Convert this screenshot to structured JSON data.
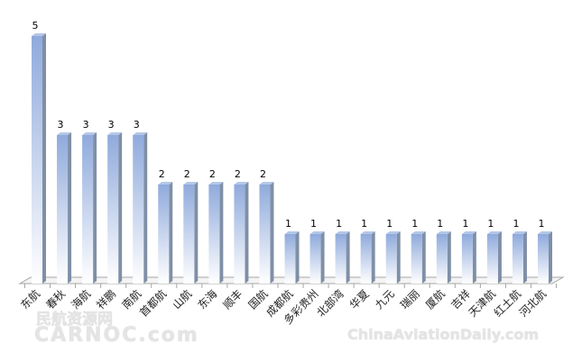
{
  "chart_data": {
    "type": "bar",
    "style": "3d-column",
    "categories": [
      "东航",
      "春秋",
      "海航",
      "祥鹏",
      "南航",
      "首都航",
      "山航",
      "东海",
      "顺丰",
      "国航",
      "成都航",
      "多彩贵州",
      "北部湾",
      "华夏",
      "九元",
      "瑞丽",
      "厦航",
      "吉祥",
      "天津航",
      "红土航",
      "河北航"
    ],
    "values": [
      5,
      3,
      3,
      3,
      3,
      2,
      2,
      2,
      2,
      2,
      1,
      1,
      1,
      1,
      1,
      1,
      1,
      1,
      1,
      1,
      1
    ],
    "ylim": [
      0,
      5
    ],
    "grid": false,
    "legend": "none",
    "data_labels": true,
    "colors": {
      "bar_top": "#8faadc",
      "bar_bottom": "#ffffff",
      "bar_side": "#7f8fa6",
      "axis": "#a6a6a6"
    }
  },
  "watermarks": [
    "民航资源网",
    "CARNOC.com",
    "ChinaAviationDaily.com"
  ]
}
